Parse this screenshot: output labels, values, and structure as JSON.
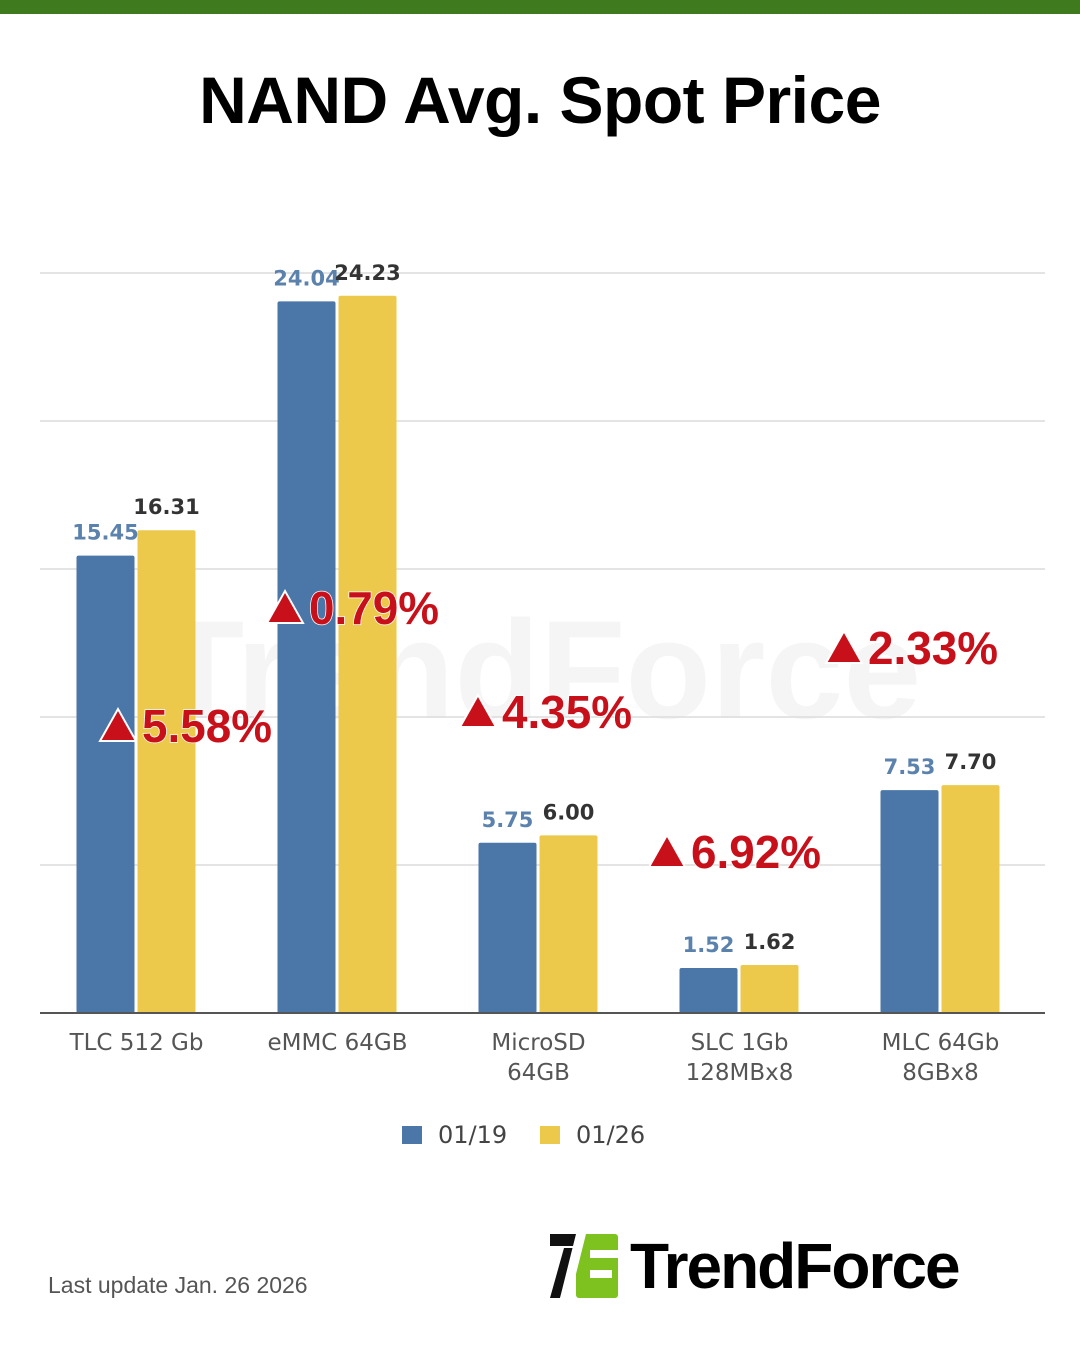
{
  "header": {
    "title": "NAND Avg. Spot Price"
  },
  "footer": {
    "last_update": "Last update Jan. 26  2026",
    "logo_text": "TrendForce"
  },
  "watermark": "TrendForce",
  "colors": {
    "top_band": "#3f7a1f",
    "series_0119": "#4a76a8",
    "series_0126": "#ecc94b",
    "change_up": "#c8101a",
    "logo_green": "#7dc21e"
  },
  "chart_data": {
    "type": "bar",
    "title": "NAND Avg. Spot Price",
    "categories": [
      "TLC 512 Gb",
      "eMMC 64GB",
      "MicroSD\n64GB",
      "SLC 1Gb\n128MBx8",
      "MLC 64Gb\n8GBx8"
    ],
    "series": [
      {
        "name": "01/19",
        "color": "#4a76a8",
        "values": [
          15.45,
          24.04,
          5.75,
          1.52,
          7.53
        ],
        "labels": [
          "15.45",
          "24.04",
          "5.75",
          "1.52",
          "7.53"
        ]
      },
      {
        "name": "01/26",
        "color": "#ecc94b",
        "values": [
          16.31,
          24.23,
          6.0,
          1.62,
          7.7
        ],
        "labels": [
          "16.31",
          "24.23",
          "6.00",
          "1.62",
          "7.70"
        ]
      }
    ],
    "changes": [
      "5.58%",
      "0.79%",
      "4.35%",
      "6.92%",
      "2.33%"
    ],
    "change_direction": "up",
    "ylim": [
      0,
      25
    ],
    "y_gridlines": [
      5,
      10,
      15,
      20,
      25
    ],
    "y_tick_labels_shown": false,
    "grid": true,
    "legend_placement": "bottom"
  }
}
